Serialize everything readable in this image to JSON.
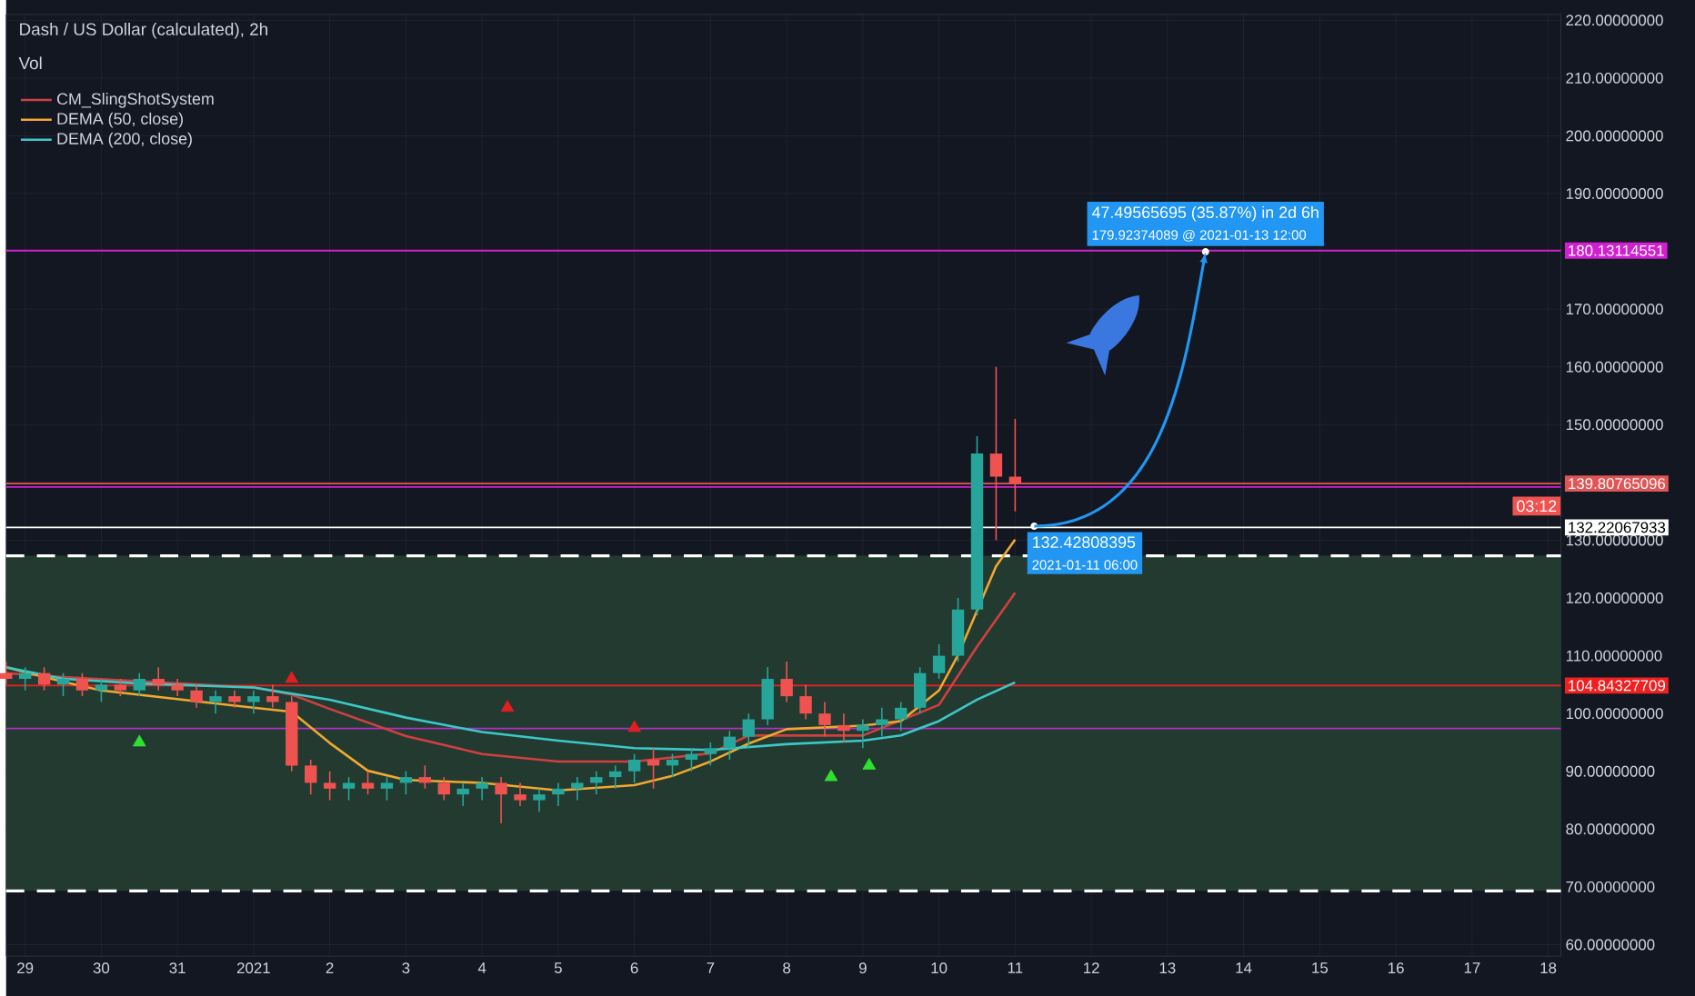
{
  "chart_data": {
    "type": "candlestick",
    "title": "Dash / US Dollar (calculated), 2h",
    "x": [
      "2020-12-28T18:00",
      "2020-12-29T00:00",
      "2020-12-29T06:00",
      "2020-12-29T12:00",
      "2020-12-29T18:00",
      "2020-12-30T00:00",
      "2020-12-30T06:00",
      "2020-12-30T12:00",
      "2020-12-30T18:00",
      "2020-12-31T00:00",
      "2020-12-31T06:00",
      "2020-12-31T12:00",
      "2020-12-31T18:00",
      "2021-01-01T00:00",
      "2021-01-01T06:00",
      "2021-01-01T12:00",
      "2021-01-01T18:00",
      "2021-01-02T00:00",
      "2021-01-02T06:00",
      "2021-01-02T12:00",
      "2021-01-02T18:00",
      "2021-01-03T00:00",
      "2021-01-03T06:00",
      "2021-01-03T12:00",
      "2021-01-03T18:00",
      "2021-01-04T00:00",
      "2021-01-04T06:00",
      "2021-01-04T12:00",
      "2021-01-04T18:00",
      "2021-01-05T00:00",
      "2021-01-05T06:00",
      "2021-01-05T12:00",
      "2021-01-05T18:00",
      "2021-01-06T00:00",
      "2021-01-06T06:00",
      "2021-01-06T12:00",
      "2021-01-06T18:00",
      "2021-01-07T00:00",
      "2021-01-07T06:00",
      "2021-01-07T12:00",
      "2021-01-07T18:00",
      "2021-01-08T00:00",
      "2021-01-08T06:00",
      "2021-01-08T12:00",
      "2021-01-08T18:00",
      "2021-01-09T00:00",
      "2021-01-09T06:00",
      "2021-01-09T12:00",
      "2021-01-09T18:00",
      "2021-01-10T00:00",
      "2021-01-10T06:00",
      "2021-01-10T12:00",
      "2021-01-10T18:00",
      "2021-01-11T00:00"
    ],
    "ohlc": [
      [
        107,
        109,
        105,
        106
      ],
      [
        106,
        108,
        104,
        107
      ],
      [
        107,
        108,
        104,
        105
      ],
      [
        105,
        107,
        103,
        106
      ],
      [
        106,
        107,
        103,
        104
      ],
      [
        104,
        106,
        102,
        105
      ],
      [
        105,
        106,
        103,
        104
      ],
      [
        104,
        107,
        103,
        106
      ],
      [
        106,
        108,
        104,
        105
      ],
      [
        105,
        106,
        103,
        104
      ],
      [
        104,
        105,
        101,
        102
      ],
      [
        102,
        104,
        100,
        103
      ],
      [
        103,
        104,
        101,
        102
      ],
      [
        102,
        104,
        100,
        103
      ],
      [
        103,
        105,
        101,
        102
      ],
      [
        102,
        103,
        90,
        91
      ],
      [
        91,
        92,
        86,
        88
      ],
      [
        88,
        90,
        85,
        87
      ],
      [
        87,
        89,
        85,
        88
      ],
      [
        88,
        90,
        86,
        87
      ],
      [
        87,
        89,
        85,
        88
      ],
      [
        88,
        90,
        86,
        89
      ],
      [
        89,
        91,
        87,
        88
      ],
      [
        88,
        89,
        85,
        86
      ],
      [
        86,
        88,
        84,
        87
      ],
      [
        87,
        89,
        85,
        88
      ],
      [
        88,
        89,
        81,
        86
      ],
      [
        86,
        88,
        84,
        85
      ],
      [
        85,
        87,
        83,
        86
      ],
      [
        86,
        88,
        84,
        87
      ],
      [
        87,
        89,
        85,
        88
      ],
      [
        88,
        90,
        86,
        89
      ],
      [
        89,
        91,
        87,
        90
      ],
      [
        90,
        93,
        88,
        92
      ],
      [
        92,
        94,
        87,
        91
      ],
      [
        91,
        93,
        89,
        92
      ],
      [
        92,
        94,
        90,
        93
      ],
      [
        93,
        95,
        91,
        94
      ],
      [
        94,
        97,
        92,
        96
      ],
      [
        96,
        100,
        94,
        99
      ],
      [
        99,
        108,
        98,
        106
      ],
      [
        106,
        109,
        102,
        103
      ],
      [
        103,
        105,
        99,
        100
      ],
      [
        100,
        102,
        96,
        98
      ],
      [
        98,
        100,
        95,
        97
      ],
      [
        97,
        99,
        94,
        98
      ],
      [
        98,
        101,
        96,
        99
      ],
      [
        99,
        102,
        97,
        101
      ],
      [
        101,
        108,
        100,
        107
      ],
      [
        107,
        112,
        106,
        110
      ],
      [
        110,
        120,
        109,
        118
      ],
      [
        118,
        148,
        117,
        145
      ],
      [
        145,
        160,
        130,
        141
      ],
      [
        141,
        151,
        135,
        139.8
      ]
    ],
    "colors": [
      "#ef5350",
      "#26a69a",
      "#ef5350",
      "#26a69a",
      "#ef5350",
      "#26a69a",
      "#ef5350",
      "#26a69a",
      "#ef5350",
      "#ef5350",
      "#ef5350",
      "#26a69a",
      "#ef5350",
      "#26a69a",
      "#ef5350",
      "#ef5350",
      "#ef5350",
      "#ef5350",
      "#26a69a",
      "#ef5350",
      "#26a69a",
      "#26a69a",
      "#ef5350",
      "#ef5350",
      "#26a69a",
      "#26a69a",
      "#ef5350",
      "#ef5350",
      "#26a69a",
      "#26a69a",
      "#26a69a",
      "#26a69a",
      "#26a69a",
      "#26a69a",
      "#ef5350",
      "#26a69a",
      "#26a69a",
      "#26a69a",
      "#26a69a",
      "#26a69a",
      "#26a69a",
      "#ef5350",
      "#ef5350",
      "#ef5350",
      "#ef5350",
      "#26a69a",
      "#26a69a",
      "#26a69a",
      "#26a69a",
      "#26a69a",
      "#26a69a",
      "#26a69a",
      "#ef5350",
      "#ef5350"
    ],
    "series": [
      {
        "name": "CM_SlingShotSystem",
        "type": "line",
        "color": "#d04040",
        "x": [
          "2020-12-28T18:00",
          "2020-12-29T12:00",
          "2021-01-01T00:00",
          "2021-01-01T12:00",
          "2021-01-02T00:00",
          "2021-01-03T00:00",
          "2021-01-04T00:00",
          "2021-01-05T00:00",
          "2021-01-06T00:00",
          "2021-01-07T00:00",
          "2021-01-07T12:00",
          "2021-01-08T00:00",
          "2021-01-09T00:00",
          "2021-01-10T00:00",
          "2021-01-10T12:00",
          "2021-01-11T00:00"
        ],
        "values": [
          107,
          106.3,
          104.5,
          103.3,
          100.8,
          96.1,
          93,
          91.7,
          91.7,
          93.1,
          96.2,
          96.2,
          96.2,
          101.5,
          111.6,
          120.9
        ]
      },
      {
        "name": "DEMA (50, close)",
        "type": "line",
        "color": "#f0a830",
        "x": [
          "2020-12-28T18:00",
          "2020-12-29T12:00",
          "2020-12-30T00:00",
          "2020-12-31T00:00",
          "2021-01-01T00:00",
          "2021-01-01T12:00",
          "2021-01-02T00:00",
          "2021-01-02T12:00",
          "2021-01-03T00:00",
          "2021-01-04T00:00",
          "2021-01-05T00:00",
          "2021-01-06T00:00",
          "2021-01-06T12:00",
          "2021-01-07T00:00",
          "2021-01-07T12:00",
          "2021-01-08T00:00",
          "2021-01-09T00:00",
          "2021-01-09T12:00",
          "2021-01-10T00:00",
          "2021-01-10T06:00",
          "2021-01-10T12:00",
          "2021-01-10T18:00",
          "2021-01-11T00:00"
        ],
        "values": [
          108,
          105.5,
          104,
          102.5,
          101,
          100.3,
          94.9,
          90.1,
          88.5,
          88,
          86.7,
          87.6,
          89.2,
          91.7,
          94.8,
          97.3,
          97.9,
          98.7,
          104,
          110.1,
          null,
          125.5,
          130.1
        ]
      },
      {
        "name": "DEMA (200, close)",
        "type": "line",
        "color": "#3cc8c8",
        "x": [
          "2020-12-28T18:00",
          "2020-12-29T12:00",
          "2020-12-30T12:00",
          "2021-01-01T00:00",
          "2021-01-02T00:00",
          "2021-01-03T00:00",
          "2021-01-04T00:00",
          "2021-01-05T00:00",
          "2021-01-06T00:00",
          "2021-01-07T00:00",
          "2021-01-08T00:00",
          "2021-01-09T00:00",
          "2021-01-09T12:00",
          "2021-01-10T00:00",
          "2021-01-10T12:00",
          "2021-01-11T00:00"
        ],
        "values": [
          108,
          106,
          105.2,
          104.5,
          102.4,
          99.3,
          96.8,
          95.3,
          94,
          93.7,
          94.7,
          95.3,
          96.2,
          98.7,
          102.4,
          105.4
        ]
      },
      {
        "type": "scatter",
        "marker": "triangle",
        "color": "#e02020",
        "x": [
          "2021-01-01T12:00",
          "2021-01-04T08:00",
          "2021-01-06T00:00"
        ],
        "values": [
          106,
          101,
          97.5
        ]
      },
      {
        "type": "scatter",
        "marker": "triangle",
        "color": "#30e030",
        "x": [
          "2020-12-30T12:00",
          "2021-01-08T14:00",
          "2021-01-09T02:00"
        ],
        "values": [
          95,
          89,
          91
        ]
      }
    ],
    "xlim": [
      "2020-12-28T18:00",
      "2021-01-18T04:00"
    ],
    "xticks": [
      {
        "value": "2020-12-29",
        "label": "29"
      },
      {
        "value": "2020-12-30",
        "label": "30"
      },
      {
        "value": "2020-12-31",
        "label": "31"
      },
      {
        "value": "2021-01-01",
        "label": "2021"
      },
      {
        "value": "2021-01-02",
        "label": "2"
      },
      {
        "value": "2021-01-03",
        "label": "3"
      },
      {
        "value": "2021-01-04",
        "label": "4"
      },
      {
        "value": "2021-01-05",
        "label": "5"
      },
      {
        "value": "2021-01-06",
        "label": "6"
      },
      {
        "value": "2021-01-07",
        "label": "7"
      },
      {
        "value": "2021-01-08",
        "label": "8"
      },
      {
        "value": "2021-01-09",
        "label": "9"
      },
      {
        "value": "2021-01-10",
        "label": "10"
      },
      {
        "value": "2021-01-11",
        "label": "11"
      },
      {
        "value": "2021-01-12",
        "label": "12"
      },
      {
        "value": "2021-01-13",
        "label": "13"
      },
      {
        "value": "2021-01-14",
        "label": "14"
      },
      {
        "value": "2021-01-15",
        "label": "15"
      },
      {
        "value": "2021-01-16",
        "label": "16"
      },
      {
        "value": "2021-01-17",
        "label": "17"
      },
      {
        "value": "2021-01-18",
        "label": "18"
      }
    ],
    "ylim": [
      58,
      221
    ],
    "yticks": [
      {
        "value": 60,
        "label": "60.00000000"
      },
      {
        "value": 70,
        "label": "70.00000000"
      },
      {
        "value": 80,
        "label": "80.00000000"
      },
      {
        "value": 90,
        "label": "90.00000000"
      },
      {
        "value": 100,
        "label": "100.00000000"
      },
      {
        "value": 110,
        "label": "110.00000000"
      },
      {
        "value": 120,
        "label": "120.00000000"
      },
      {
        "value": 130,
        "label": "130.00000000"
      },
      {
        "value": 140,
        "label": null
      },
      {
        "value": 150,
        "label": "150.00000000"
      },
      {
        "value": 160,
        "label": "160.00000000"
      },
      {
        "value": 170,
        "label": "170.00000000"
      },
      {
        "value": 180,
        "label": null
      },
      {
        "value": 190,
        "label": "190.00000000"
      },
      {
        "value": 200,
        "label": "200.00000000"
      },
      {
        "value": 210,
        "label": "210.00000000"
      },
      {
        "value": 220,
        "label": "220.00000000"
      }
    ],
    "grid": true,
    "legend": "top left",
    "bands": [
      {
        "axis": "y",
        "from": 69.3,
        "to": 127.3,
        "color": "#233a30"
      }
    ],
    "ref_lines": [
      {
        "axis": "y",
        "value": 180.13114551,
        "label": "180.13114551",
        "color": "#d020d0"
      },
      {
        "axis": "y",
        "value": 139.2,
        "color": "#d020d0"
      },
      {
        "axis": "y",
        "value": 97.4,
        "color": "#b030c0"
      },
      {
        "axis": "y",
        "value": 127.3,
        "color": "#ffffff",
        "line_style": "dashed"
      },
      {
        "axis": "y",
        "value": 69.3,
        "color": "#ffffff",
        "line_style": "dashed"
      },
      {
        "axis": "y",
        "value": 139.80765096,
        "label": "139.80765096",
        "color": "#e05555"
      },
      {
        "axis": "y",
        "value": 132.22067933,
        "label": "132.22067933",
        "color": "#ffffff"
      },
      {
        "axis": "y",
        "value": 104.84327709,
        "label": "104.84327709",
        "color": "#f02020"
      }
    ],
    "annotations": [
      {
        "text": "47.49565695 (35.87%) in 2d 6h",
        "x": "2021-01-13T12:00",
        "y": 179.92374089
      },
      {
        "text": "179.92374089 @ 2021-01-13  12:00",
        "x": "2021-01-13T12:00",
        "y": 179.92374089
      },
      {
        "text": "132.42808395",
        "x": "2021-01-11T06:00",
        "y": 132.42808395
      },
      {
        "text": "2021-01-11 06:00",
        "x": "2021-01-11T06:00",
        "y": 132.42808395
      },
      "Vol",
      "03:12"
    ]
  }
}
